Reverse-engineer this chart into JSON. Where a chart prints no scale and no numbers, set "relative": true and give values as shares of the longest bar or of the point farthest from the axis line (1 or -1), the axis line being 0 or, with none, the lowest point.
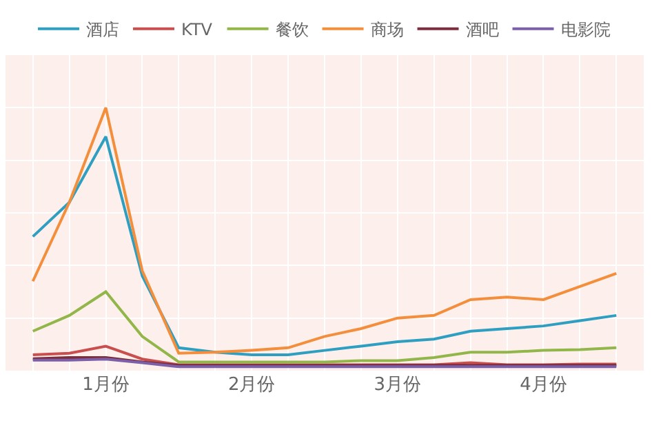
{
  "chart_data": {
    "type": "line",
    "relative": true,
    "grid": true,
    "legend": "top",
    "marker": "none",
    "line_style": "solid",
    "categories": [
      null,
      null,
      "1月份",
      null,
      null,
      null,
      "2月份",
      null,
      null,
      null,
      "3月份",
      null,
      null,
      null,
      "4月份",
      null,
      null
    ],
    "series": [
      {
        "name": "酒店",
        "color": "#2f9fc1",
        "values": [
          0.51,
          0.64,
          0.89,
          0.36,
          0.087,
          0.07,
          0.06,
          0.06,
          0.077,
          0.093,
          0.11,
          0.12,
          0.15,
          0.16,
          0.17,
          0.19,
          0.21
        ]
      },
      {
        "name": "KTV",
        "color": "#c94f4f",
        "values": [
          0.06,
          0.066,
          0.093,
          0.044,
          0.022,
          0.022,
          0.022,
          0.022,
          0.022,
          0.022,
          0.022,
          0.022,
          0.03,
          0.022,
          0.022,
          0.025,
          0.025
        ]
      },
      {
        "name": "餐饮",
        "color": "#93b64a",
        "values": [
          0.15,
          0.21,
          0.3,
          0.13,
          0.033,
          0.033,
          0.033,
          0.033,
          0.033,
          0.038,
          0.038,
          0.05,
          0.07,
          0.07,
          0.077,
          0.08,
          0.087
        ]
      },
      {
        "name": "商场",
        "color": "#f38f3c",
        "values": [
          0.34,
          0.64,
          1,
          0.38,
          0.066,
          0.07,
          0.077,
          0.087,
          0.13,
          0.16,
          0.2,
          0.21,
          0.27,
          0.28,
          0.27,
          0.32,
          0.37
        ]
      },
      {
        "name": "酒吧",
        "color": "#7d2c3b",
        "values": [
          0.045,
          0.05,
          0.05,
          0.033,
          0.02,
          0.02,
          0.02,
          0.02,
          0.02,
          0.02,
          0.02,
          0.02,
          0.02,
          0.02,
          0.02,
          0.02,
          0.02
        ]
      },
      {
        "name": "电影院",
        "color": "#7b5fa8",
        "values": [
          0.04,
          0.04,
          0.044,
          0.03,
          0.015,
          0.015,
          0.015,
          0.015,
          0.015,
          0.015,
          0.015,
          0.015,
          0.015,
          0.015,
          0.015,
          0.015,
          0.015
        ]
      }
    ]
  }
}
